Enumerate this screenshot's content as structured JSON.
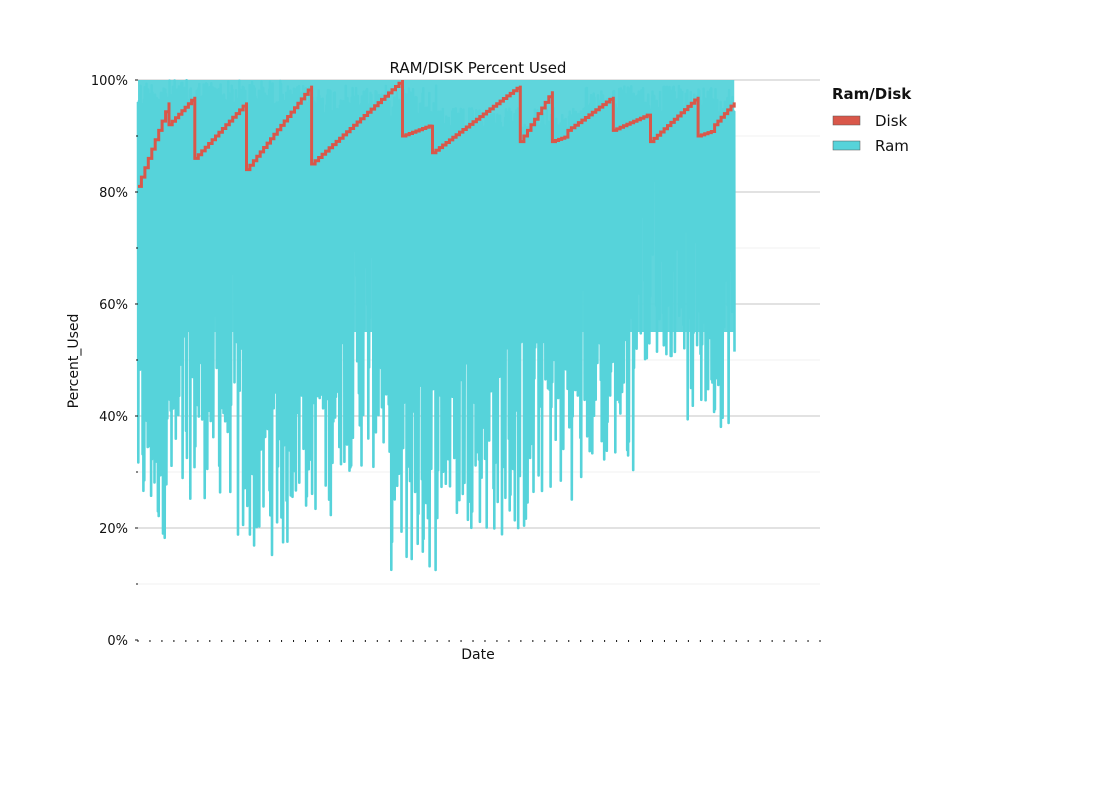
{
  "chart_data": {
    "type": "line",
    "title": "RAM/DISK Percent Used",
    "xlabel": "Date",
    "ylabel": "Percent_Used",
    "ylim": [
      0,
      100
    ],
    "yticks": [
      0,
      20,
      40,
      60,
      80,
      100
    ],
    "ytick_labels": [
      "0%",
      "20%",
      "40%",
      "60%",
      "80%",
      "100%"
    ],
    "grid": true,
    "legend": {
      "title": "Ram/Disk",
      "placement": "right-outside",
      "entries": [
        "Disk",
        "Ram"
      ]
    },
    "colors": {
      "Disk": "#d9574a",
      "Ram": "#56d3da"
    },
    "series": [
      {
        "name": "Disk",
        "step_pattern": "sawtooth",
        "segments": [
          {
            "start": 0.0,
            "end": 3.0,
            "from": 81,
            "to": 96
          },
          {
            "start": 3.0,
            "end": 5.5,
            "from": 92,
            "to": 97
          },
          {
            "start": 5.5,
            "end": 10.5,
            "from": 86,
            "to": 96
          },
          {
            "start": 10.5,
            "end": 16.8,
            "from": 84,
            "to": 99
          },
          {
            "start": 16.8,
            "end": 25.6,
            "from": 85,
            "to": 100
          },
          {
            "start": 25.6,
            "end": 28.5,
            "from": 90,
            "to": 92
          },
          {
            "start": 28.5,
            "end": 37.0,
            "from": 87,
            "to": 99
          },
          {
            "start": 37.0,
            "end": 40.1,
            "from": 89,
            "to": 98
          },
          {
            "start": 40.1,
            "end": 41.6,
            "from": 89,
            "to": 90
          },
          {
            "start": 41.6,
            "end": 46.0,
            "from": 91,
            "to": 97
          },
          {
            "start": 46.0,
            "end": 49.6,
            "from": 91,
            "to": 94
          },
          {
            "start": 49.6,
            "end": 54.2,
            "from": 89,
            "to": 97
          },
          {
            "start": 54.2,
            "end": 55.8,
            "from": 90,
            "to": 91
          },
          {
            "start": 55.8,
            "end": 57.7,
            "from": 92,
            "to": 96
          }
        ]
      },
      {
        "name": "Ram",
        "x_range": [
          0,
          57.7
        ],
        "band_high": [
          100,
          99,
          95,
          99
        ],
        "band_low": [
          18,
          25,
          15,
          22,
          30,
          12,
          20,
          18,
          25,
          30,
          50,
          38
        ],
        "values_summary": "dense fluctuating series, mostly between 15% and 100%"
      }
    ],
    "x_tick_count": 58
  }
}
